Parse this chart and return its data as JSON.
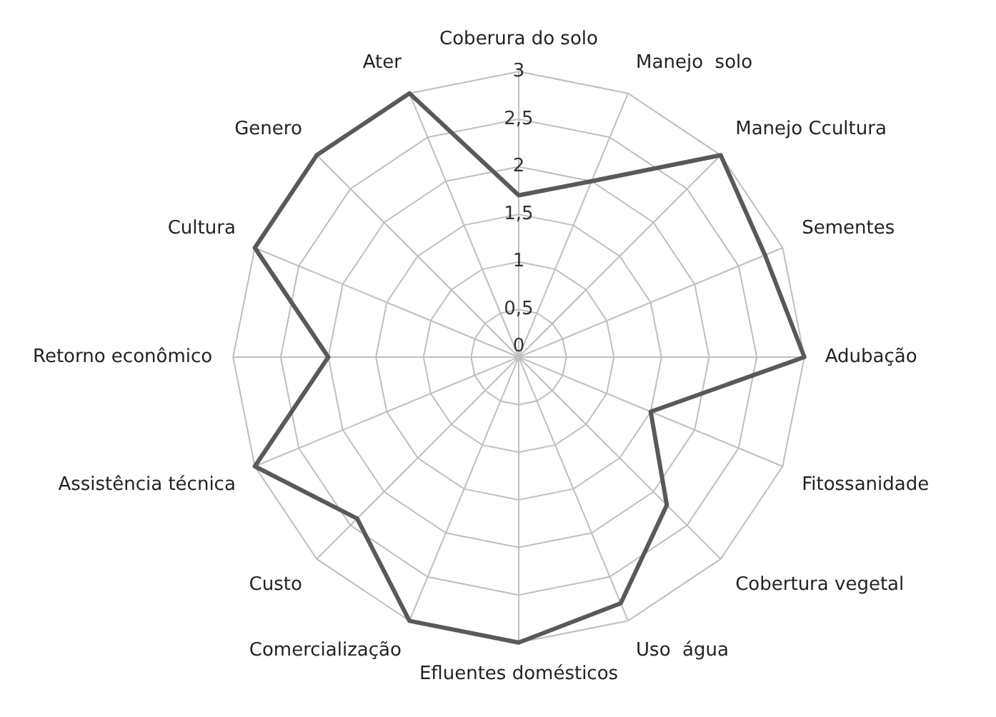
{
  "chart_data": {
    "type": "radar",
    "categories": [
      "Coberura do solo",
      "Manejo  solo",
      "Manejo Ccultura",
      "Sementes",
      "Adubação",
      "Fitossanidade",
      "Cobertura vegetal",
      "Uso  água",
      "Efluentes domésticos",
      "Comercialização",
      "Custo",
      "Assistência técnica",
      "Retorno econômico",
      "Cultura",
      "Genero",
      "Ater"
    ],
    "series": [
      {
        "color": "#595959",
        "values": [
          1.7,
          2,
          3,
          2.8,
          3,
          1.5,
          2.2,
          2.8,
          3,
          3,
          2.4,
          3,
          2,
          3,
          3,
          3
        ]
      }
    ],
    "ylim": [
      0,
      3
    ],
    "yticks": [
      0,
      {
        "value": 0.5,
        "label": "0,5"
      },
      1,
      {
        "value": 1.5,
        "label": "1,5"
      },
      2,
      {
        "value": 2.5,
        "label": "2,5"
      },
      3
    ],
    "grid": true,
    "legend": false,
    "marker": "none",
    "line_style": "solid"
  }
}
